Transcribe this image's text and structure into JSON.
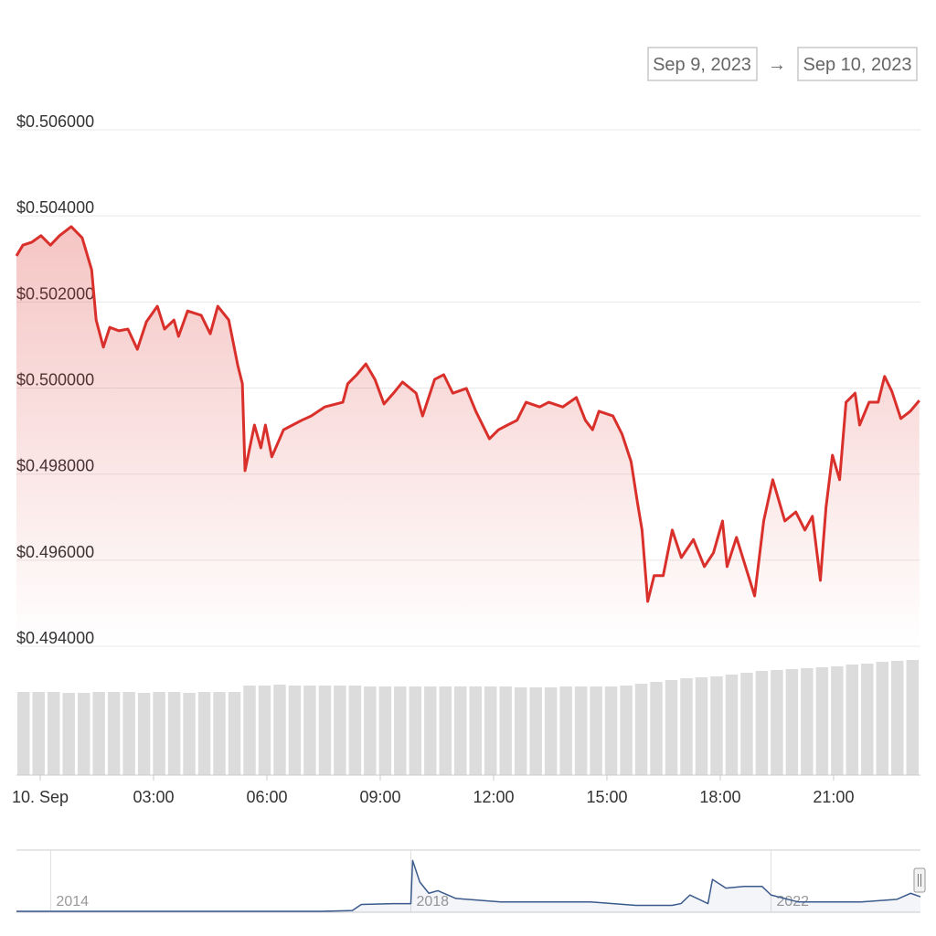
{
  "chart_data": {
    "type": "line",
    "date_range_from": "Sep 9, 2023",
    "date_range_separator": "→",
    "date_range_to": "Sep 10, 2023",
    "color": "#d9302b",
    "x": [
      -0.63,
      -0.46,
      -0.22,
      0.02,
      0.27,
      0.51,
      0.82,
      1.11,
      1.36,
      1.48,
      1.67,
      1.84,
      2.08,
      2.32,
      2.57,
      2.81,
      3.1,
      3.29,
      3.54,
      3.66,
      3.9,
      4.26,
      4.5,
      4.7,
      4.99,
      5.23,
      5.35,
      5.42,
      5.67,
      5.84,
      5.96,
      6.13,
      6.44,
      6.68,
      6.92,
      7.17,
      7.53,
      8.01,
      8.14,
      8.38,
      8.62,
      8.86,
      9.1,
      9.35,
      9.59,
      9.95,
      10.12,
      10.44,
      10.68,
      10.92,
      11.28,
      11.53,
      11.89,
      12.13,
      12.37,
      12.62,
      12.86,
      13.22,
      13.46,
      13.83,
      14.19,
      14.43,
      14.62,
      14.79,
      15.16,
      15.4,
      15.64,
      15.81,
      15.93,
      16.08,
      16.25,
      16.49,
      16.73,
      16.97,
      17.29,
      17.58,
      17.82,
      18.06,
      18.18,
      18.43,
      18.67,
      18.91,
      19.15,
      19.39,
      19.71,
      20.0,
      20.24,
      20.44,
      20.65,
      20.8,
      20.97,
      21.16,
      21.33,
      21.57,
      21.69,
      21.94,
      22.18,
      22.35,
      22.54,
      22.78,
      23.03,
      23.27
    ],
    "values": [
      0.50307,
      0.50332,
      0.50339,
      0.50354,
      0.50332,
      0.50354,
      0.50375,
      0.50349,
      0.50275,
      0.50158,
      0.50095,
      0.50141,
      0.50133,
      0.50137,
      0.5009,
      0.50154,
      0.5019,
      0.50137,
      0.50158,
      0.5012,
      0.50179,
      0.50169,
      0.50126,
      0.5019,
      0.50158,
      0.50052,
      0.5001,
      0.49808,
      0.49914,
      0.49861,
      0.49914,
      0.4984,
      0.49903,
      0.49914,
      0.49925,
      0.49935,
      0.49956,
      0.49967,
      0.5001,
      0.50031,
      0.50056,
      0.5002,
      0.49963,
      0.49988,
      0.50014,
      0.49988,
      0.49935,
      0.5002,
      0.50031,
      0.49988,
      0.49999,
      0.49946,
      0.49882,
      0.49903,
      0.49914,
      0.49925,
      0.49967,
      0.49956,
      0.49967,
      0.49956,
      0.49978,
      0.49925,
      0.49903,
      0.49946,
      0.49935,
      0.49893,
      0.49829,
      0.49733,
      0.4967,
      0.49504,
      0.49564,
      0.49564,
      0.4967,
      0.49606,
      0.49648,
      0.49585,
      0.49617,
      0.49691,
      0.49585,
      0.49653,
      0.49585,
      0.49517,
      0.49691,
      0.49787,
      0.49691,
      0.49712,
      0.4967,
      0.49702,
      0.49553,
      0.49723,
      0.49844,
      0.49787,
      0.49967,
      0.49988,
      0.49914,
      0.49967,
      0.49967,
      0.50027,
      0.49993,
      0.49929,
      0.49946,
      0.49971
    ],
    "xlim": [
      -0.63,
      23.3
    ],
    "xticks": [
      {
        "value": 0,
        "label": "10. Sep"
      },
      {
        "value": 3,
        "label": "03:00"
      },
      {
        "value": 6,
        "label": "06:00"
      },
      {
        "value": 9,
        "label": "09:00"
      },
      {
        "value": 12,
        "label": "12:00"
      },
      {
        "value": 15,
        "label": "15:00"
      },
      {
        "value": 18,
        "label": "18:00"
      },
      {
        "value": 21,
        "label": "21:00"
      }
    ],
    "ylim": [
      0.494,
      0.506
    ],
    "yticks": [
      {
        "value": 0.494,
        "label": "$0.494000"
      },
      {
        "value": 0.496,
        "label": "$0.496000"
      },
      {
        "value": 0.498,
        "label": "$0.498000"
      },
      {
        "value": 0.5,
        "label": "$0.500000"
      },
      {
        "value": 0.502,
        "label": "$0.502000"
      },
      {
        "value": 0.504,
        "label": "$0.504000"
      },
      {
        "value": 0.506,
        "label": "$0.506000"
      }
    ],
    "grid": true,
    "volume": {
      "color": "#dcdcdc",
      "y2lim": [
        0,
        130
      ],
      "values": [
        91,
        91,
        91,
        90,
        90,
        91,
        91,
        91,
        90,
        91,
        91,
        90,
        91,
        91,
        91,
        98,
        98,
        99,
        98,
        98,
        98,
        98,
        98,
        97,
        97,
        97,
        97,
        97,
        97,
        97,
        97,
        97,
        97,
        96,
        96,
        96,
        97,
        97,
        97,
        97,
        98,
        100,
        102,
        104,
        106,
        107,
        108,
        110,
        112,
        114,
        115,
        116,
        117,
        118,
        119,
        121,
        122,
        124,
        125,
        126
      ]
    },
    "navigator": {
      "type": "line",
      "color": "#3a5a8c",
      "x": [
        2013.62,
        2014,
        2015,
        2016,
        2017,
        2017.35,
        2017.45,
        2017.8,
        2018.0,
        2018.02,
        2018.1,
        2018.2,
        2018.3,
        2018.5,
        2019,
        2019.5,
        2020,
        2020.5,
        2020.9,
        2021.0,
        2021.1,
        2021.3,
        2021.35,
        2021.5,
        2021.7,
        2021.9,
        2022,
        2022.3,
        2022.6,
        2023,
        2023.4,
        2023.55,
        2023.66
      ],
      "values": [
        1,
        1,
        1,
        1,
        1,
        2,
        9,
        10,
        10,
        60,
        35,
        22,
        25,
        16,
        12,
        12,
        12,
        8,
        8,
        10,
        20,
        10,
        38,
        28,
        30,
        30,
        20,
        12,
        12,
        12,
        15,
        22,
        18
      ],
      "xlim": [
        2013.62,
        2023.66
      ],
      "ylim": [
        0,
        70
      ],
      "xticks": [
        2014,
        2018,
        2022
      ]
    }
  }
}
